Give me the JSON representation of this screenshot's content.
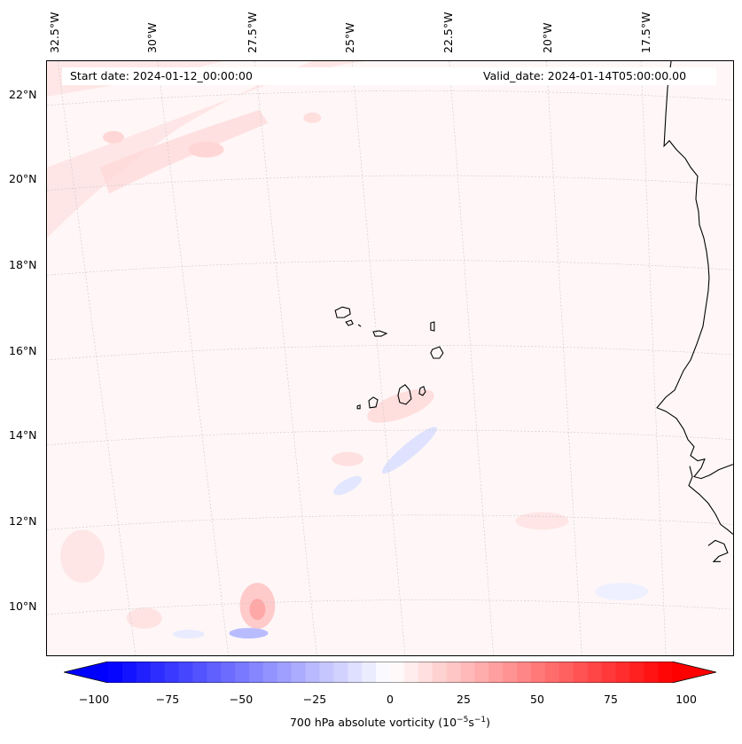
{
  "map": {
    "start_date": "Start date: 2024-01-12_00:00:00",
    "valid_date": "Valid_date: 2024-01-14T05:00:00.00",
    "lon_labels": [
      "32.5°W",
      "30°W",
      "27.5°W",
      "25°W",
      "22.5°W",
      "20°W",
      "17.5°W"
    ],
    "lat_labels": [
      "22°N",
      "20°N",
      "18°N",
      "16°N",
      "14°N",
      "12°N",
      "10°N"
    ],
    "field": "700 hPa absolute vorticity"
  },
  "colorbar": {
    "ticks": [
      "−100",
      "−75",
      "−50",
      "−25",
      "0",
      "25",
      "50",
      "75",
      "100"
    ],
    "label": "700 hPa absolute vorticity (10",
    "label_exp1": "−5",
    "label_mid": "s",
    "label_exp2": "−1",
    "label_end": ")",
    "colormap": "bwr",
    "range": [
      -100,
      100
    ],
    "colors": {
      "negative": "#0000ff",
      "zero": "#ffffff",
      "positive": "#ff0000"
    }
  }
}
